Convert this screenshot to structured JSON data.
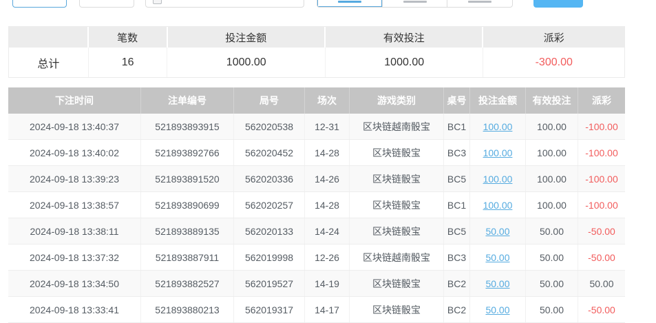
{
  "top_bar": {
    "outline_button_primary_label": "",
    "outline_button_secondary_label": "",
    "date_input_value": "",
    "date_input_placeholder": "",
    "segment_labels": [
      "",
      "",
      ""
    ],
    "submit_button_label": ""
  },
  "summary": {
    "columns": [
      "",
      "笔数",
      "投注金额",
      "有效投注",
      "派彩"
    ],
    "values": [
      "总计",
      "16",
      "1000.00",
      "1000.00",
      "-300.00"
    ]
  },
  "table": {
    "columns": [
      "下注时间",
      "注单编号",
      "局号",
      "场次",
      "游戏类别",
      "桌号",
      "投注金额",
      "有效投注",
      "派彩"
    ],
    "rows": [
      [
        "2024-09-18 13:40:37",
        "521893893915",
        "562020538",
        "12-31",
        "区块链越南骰宝",
        "BC1",
        "100.00",
        "100.00",
        "-100.00"
      ],
      [
        "2024-09-18 13:40:02",
        "521893892766",
        "562020452",
        "14-28",
        "区块链骰宝",
        "BC3",
        "100.00",
        "100.00",
        "-100.00"
      ],
      [
        "2024-09-18 13:39:23",
        "521893891520",
        "562020336",
        "14-26",
        "区块链骰宝",
        "BC5",
        "100.00",
        "100.00",
        "-100.00"
      ],
      [
        "2024-09-18 13:38:57",
        "521893890699",
        "562020257",
        "14-28",
        "区块链骰宝",
        "BC1",
        "100.00",
        "100.00",
        "-100.00"
      ],
      [
        "2024-09-18 13:38:11",
        "521893889135",
        "562020133",
        "14-24",
        "区块链骰宝",
        "BC5",
        "50.00",
        "50.00",
        "-50.00"
      ],
      [
        "2024-09-18 13:37:32",
        "521893887911",
        "562019998",
        "12-26",
        "区块链越南骰宝",
        "BC3",
        "50.00",
        "50.00",
        "-50.00"
      ],
      [
        "2024-09-18 13:34:50",
        "521893882527",
        "562019527",
        "14-19",
        "区块链骰宝",
        "BC2",
        "50.00",
        "50.00",
        "50.00"
      ],
      [
        "2024-09-18 13:33:41",
        "521893880213",
        "562019317",
        "14-17",
        "区块链骰宝",
        "BC2",
        "50.00",
        "50.00",
        "-50.00"
      ]
    ]
  },
  "colors": {
    "accent_link_blue": "#55abe0",
    "negative_red": "#f25c5c",
    "table_header_gray": "#c4c4c4",
    "primary_button_blue": "#55b6f3"
  }
}
